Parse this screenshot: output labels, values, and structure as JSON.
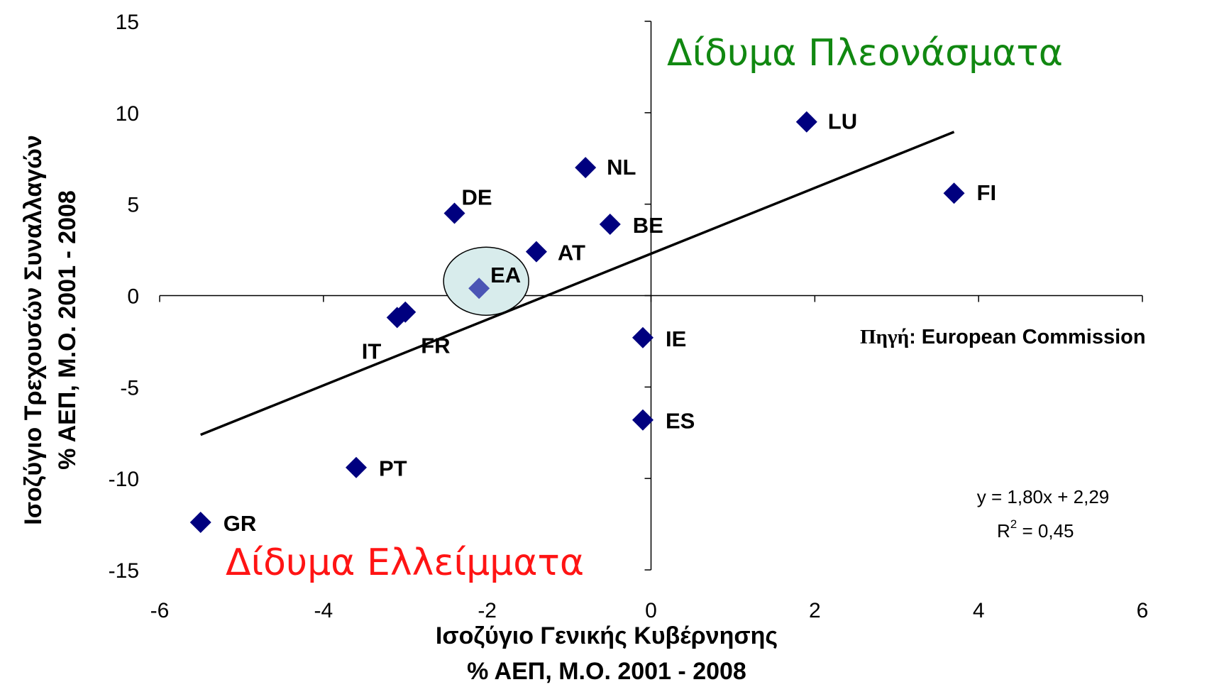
{
  "chart_data": {
    "type": "scatter",
    "x_title_line1": "Ισοζύγιο Γενικής Κυβέρνησης",
    "x_title_line2": "% ΑΕΠ, Μ.Ο. 2001 - 2008",
    "y_title_line1": "Ισοζύγιο Τρεχουσών Συναλλαγών",
    "y_title_line2": "% ΑΕΠ, Μ.Ο. 2001 - 2008",
    "xlim": [
      -6,
      6
    ],
    "ylim": [
      -15,
      15
    ],
    "x_ticks": [
      -6,
      -4,
      -2,
      0,
      2,
      4,
      6
    ],
    "y_ticks": [
      15,
      10,
      5,
      0,
      -5,
      -10,
      -15
    ],
    "points": [
      {
        "label": "LU",
        "x": 1.9,
        "y": 9.5
      },
      {
        "label": "NL",
        "x": -0.8,
        "y": 7.0
      },
      {
        "label": "DE",
        "x": -2.4,
        "y": 4.5
      },
      {
        "label": "FI",
        "x": 3.7,
        "y": 5.6
      },
      {
        "label": "BE",
        "x": -0.5,
        "y": 3.9
      },
      {
        "label": "AT",
        "x": -1.4,
        "y": 2.4
      },
      {
        "label": "EA",
        "x": -2.1,
        "y": 0.4,
        "highlight": true
      },
      {
        "label": "IT",
        "x": -3.1,
        "y": -1.2
      },
      {
        "label": "FR",
        "x": -3.0,
        "y": -0.9
      },
      {
        "label": "IE",
        "x": -0.1,
        "y": -2.3
      },
      {
        "label": "ES",
        "x": -0.1,
        "y": -6.8
      },
      {
        "label": "PT",
        "x": -3.6,
        "y": -9.4
      },
      {
        "label": "GR",
        "x": -5.5,
        "y": -12.4
      }
    ],
    "trendline": {
      "slope": 1.8,
      "intercept": 2.29,
      "x_from": -5.5,
      "x_to": 3.7
    },
    "equation": "y = 1,80x + 2,29",
    "r2_prefix": "R",
    "r2_sup": "2",
    "r2_value": " = 0,45",
    "region_top": "Δίδυμα Πλεονάσματα",
    "region_bottom": "Δίδυμα Ελλείμματα",
    "source_greek": "Πηγή",
    "source_latin": ": European Commission",
    "colors": {
      "marker": "#00007f",
      "highlight_marker": "#4b55b5",
      "highlight_ellipse": "#d8ecec",
      "top_region": "#118811",
      "bottom_region": "#ff1414",
      "trendline": "#000000"
    }
  }
}
